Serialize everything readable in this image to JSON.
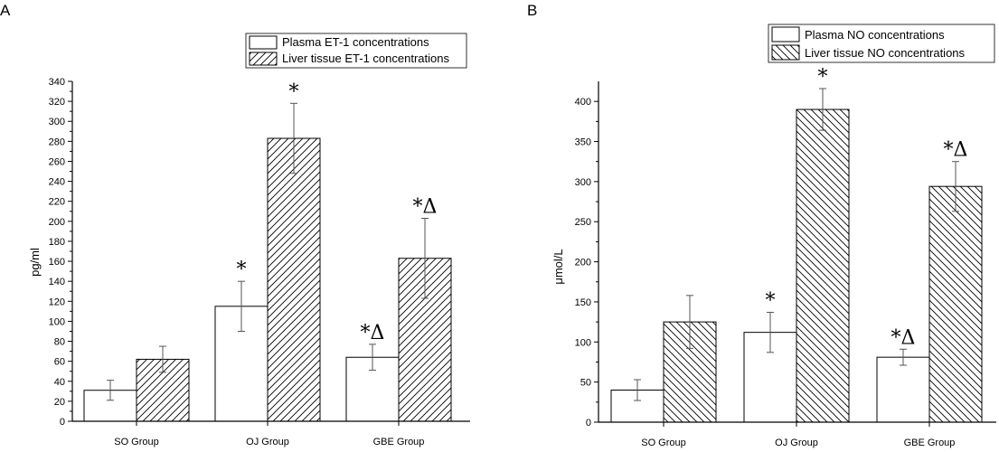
{
  "chart_data": [
    {
      "panel": "A",
      "type": "bar",
      "categories": [
        "SO Group",
        "OJ Group",
        "GBE Group"
      ],
      "ylabel": "pg/ml",
      "ylim": [
        0,
        340
      ],
      "yticks": [
        0,
        20,
        40,
        60,
        80,
        100,
        120,
        140,
        160,
        180,
        200,
        220,
        240,
        260,
        280,
        300,
        320,
        340
      ],
      "legend_position": "top-right",
      "series": [
        {
          "name": "Plasma ET-1 concentrations",
          "pattern": "plain",
          "values": [
            31,
            115,
            64
          ],
          "errors": [
            10,
            25,
            13
          ],
          "annotations": [
            "",
            "*",
            "*Δ"
          ]
        },
        {
          "name": "Liver tissue ET-1 concentrations",
          "pattern": "hatch-forward",
          "values": [
            62,
            283,
            163
          ],
          "errors": [
            13,
            35,
            40
          ],
          "annotations": [
            "",
            "*",
            "*Δ"
          ]
        }
      ]
    },
    {
      "panel": "B",
      "type": "bar",
      "categories": [
        "SO Group",
        "OJ Group",
        "GBE Group"
      ],
      "ylabel": "μmol/L",
      "ylim": [
        0,
        425
      ],
      "yticks": [
        0,
        50,
        100,
        150,
        200,
        250,
        300,
        350,
        400
      ],
      "legend_position": "top-right",
      "series": [
        {
          "name": "Plasma NO concentrations",
          "pattern": "plain",
          "values": [
            40,
            112,
            81
          ],
          "errors": [
            13,
            25,
            10
          ],
          "annotations": [
            "",
            "*",
            "*Δ"
          ]
        },
        {
          "name": "Liver tissue NO concentrations",
          "pattern": "hatch-back",
          "values": [
            125,
            390,
            294
          ],
          "errors": [
            33,
            26,
            31
          ],
          "annotations": [
            "",
            "*",
            "*Δ"
          ]
        }
      ]
    }
  ]
}
